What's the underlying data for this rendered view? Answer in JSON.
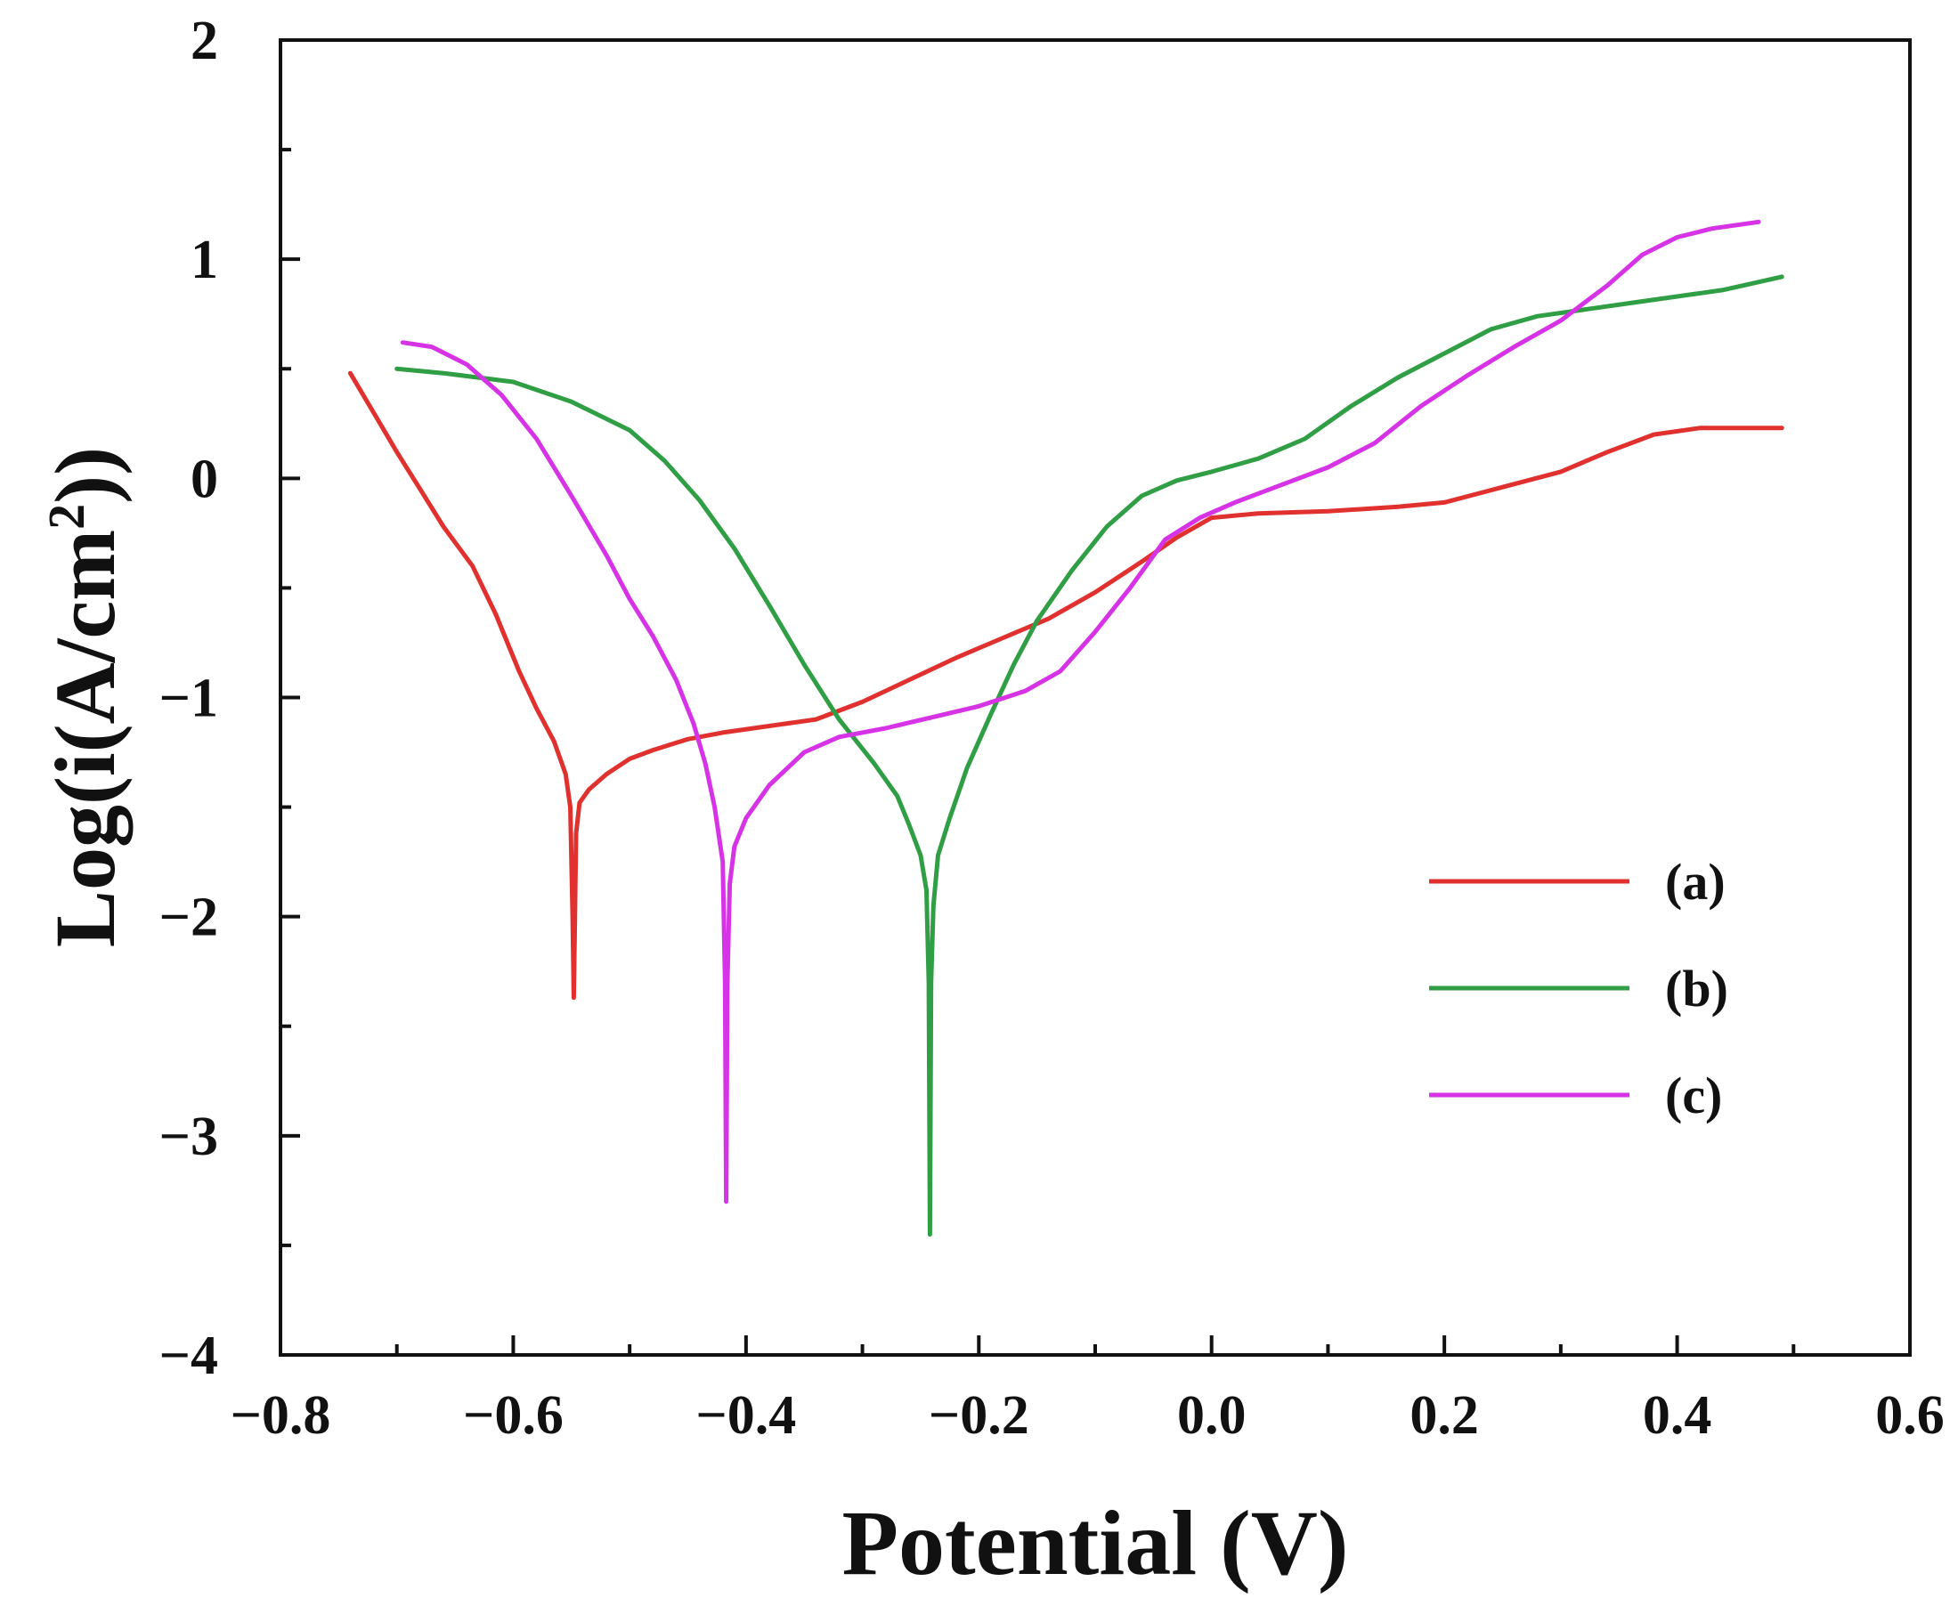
{
  "chart_data": {
    "type": "line",
    "title": "",
    "xlabel": "Potential (V)",
    "ylabel": {
      "prefix": "Log(i(A/cm",
      "sup": "2",
      "suffix": "))"
    },
    "xlim": [
      -0.8,
      0.6
    ],
    "ylim": [
      -4,
      2
    ],
    "xticks": [
      -0.8,
      -0.6,
      -0.4,
      -0.2,
      0.0,
      0.2,
      0.4,
      0.6
    ],
    "xtick_labels": [
      "−0.8",
      "−0.6",
      "−0.4",
      "−0.2",
      "0.0",
      "0.2",
      "0.4",
      "0.6"
    ],
    "yticks": [
      2,
      1,
      0,
      -1,
      -2,
      -3,
      -4
    ],
    "ytick_labels": [
      "2",
      "1",
      "0",
      "−1",
      "−2",
      "−3",
      "−4"
    ],
    "legend_position": "lower-right",
    "grid": false,
    "series": [
      {
        "name": "(a)",
        "color": "#e0312f",
        "points": [
          [
            -0.74,
            0.48
          ],
          [
            -0.72,
            0.3
          ],
          [
            -0.7,
            0.12
          ],
          [
            -0.68,
            -0.05
          ],
          [
            -0.66,
            -0.22
          ],
          [
            -0.635,
            -0.4
          ],
          [
            -0.615,
            -0.62
          ],
          [
            -0.595,
            -0.88
          ],
          [
            -0.58,
            -1.05
          ],
          [
            -0.565,
            -1.2
          ],
          [
            -0.555,
            -1.35
          ],
          [
            -0.551,
            -1.5
          ],
          [
            -0.549,
            -2.0
          ],
          [
            -0.548,
            -2.37
          ],
          [
            -0.547,
            -2.0
          ],
          [
            -0.546,
            -1.62
          ],
          [
            -0.543,
            -1.48
          ],
          [
            -0.535,
            -1.42
          ],
          [
            -0.52,
            -1.35
          ],
          [
            -0.5,
            -1.28
          ],
          [
            -0.48,
            -1.24
          ],
          [
            -0.45,
            -1.19
          ],
          [
            -0.42,
            -1.16
          ],
          [
            -0.38,
            -1.13
          ],
          [
            -0.34,
            -1.1
          ],
          [
            -0.3,
            -1.02
          ],
          [
            -0.26,
            -0.92
          ],
          [
            -0.22,
            -0.82
          ],
          [
            -0.18,
            -0.73
          ],
          [
            -0.14,
            -0.64
          ],
          [
            -0.1,
            -0.52
          ],
          [
            -0.06,
            -0.38
          ],
          [
            -0.03,
            -0.27
          ],
          [
            0.0,
            -0.18
          ],
          [
            0.04,
            -0.16
          ],
          [
            0.1,
            -0.15
          ],
          [
            0.16,
            -0.13
          ],
          [
            0.2,
            -0.11
          ],
          [
            0.25,
            -0.04
          ],
          [
            0.3,
            0.03
          ],
          [
            0.34,
            0.12
          ],
          [
            0.38,
            0.2
          ],
          [
            0.42,
            0.23
          ],
          [
            0.46,
            0.23
          ],
          [
            0.49,
            0.23
          ]
        ]
      },
      {
        "name": "(b)",
        "color": "#2f9e44",
        "points": [
          [
            -0.7,
            0.5
          ],
          [
            -0.66,
            0.48
          ],
          [
            -0.6,
            0.44
          ],
          [
            -0.55,
            0.35
          ],
          [
            -0.5,
            0.22
          ],
          [
            -0.47,
            0.08
          ],
          [
            -0.44,
            -0.1
          ],
          [
            -0.41,
            -0.32
          ],
          [
            -0.38,
            -0.58
          ],
          [
            -0.35,
            -0.85
          ],
          [
            -0.32,
            -1.1
          ],
          [
            -0.29,
            -1.3
          ],
          [
            -0.27,
            -1.45
          ],
          [
            -0.26,
            -1.58
          ],
          [
            -0.25,
            -1.72
          ],
          [
            -0.245,
            -1.88
          ],
          [
            -0.243,
            -2.3
          ],
          [
            -0.242,
            -3.45
          ],
          [
            -0.241,
            -2.3
          ],
          [
            -0.239,
            -1.95
          ],
          [
            -0.235,
            -1.72
          ],
          [
            -0.225,
            -1.55
          ],
          [
            -0.21,
            -1.32
          ],
          [
            -0.19,
            -1.08
          ],
          [
            -0.17,
            -0.85
          ],
          [
            -0.15,
            -0.65
          ],
          [
            -0.12,
            -0.42
          ],
          [
            -0.09,
            -0.22
          ],
          [
            -0.06,
            -0.08
          ],
          [
            -0.03,
            -0.01
          ],
          [
            0.0,
            0.03
          ],
          [
            0.04,
            0.09
          ],
          [
            0.08,
            0.18
          ],
          [
            0.12,
            0.33
          ],
          [
            0.16,
            0.46
          ],
          [
            0.2,
            0.57
          ],
          [
            0.24,
            0.68
          ],
          [
            0.28,
            0.74
          ],
          [
            0.32,
            0.77
          ],
          [
            0.36,
            0.8
          ],
          [
            0.4,
            0.83
          ],
          [
            0.44,
            0.86
          ],
          [
            0.49,
            0.92
          ]
        ]
      },
      {
        "name": "(c)",
        "color": "#d633e6",
        "points": [
          [
            -0.695,
            0.62
          ],
          [
            -0.67,
            0.6
          ],
          [
            -0.64,
            0.52
          ],
          [
            -0.61,
            0.38
          ],
          [
            -0.58,
            0.18
          ],
          [
            -0.55,
            -0.08
          ],
          [
            -0.52,
            -0.35
          ],
          [
            -0.5,
            -0.55
          ],
          [
            -0.48,
            -0.72
          ],
          [
            -0.46,
            -0.92
          ],
          [
            -0.445,
            -1.12
          ],
          [
            -0.435,
            -1.3
          ],
          [
            -0.427,
            -1.5
          ],
          [
            -0.42,
            -1.75
          ],
          [
            -0.418,
            -2.3
          ],
          [
            -0.417,
            -3.3
          ],
          [
            -0.416,
            -2.3
          ],
          [
            -0.414,
            -1.85
          ],
          [
            -0.41,
            -1.68
          ],
          [
            -0.4,
            -1.55
          ],
          [
            -0.38,
            -1.4
          ],
          [
            -0.35,
            -1.25
          ],
          [
            -0.32,
            -1.18
          ],
          [
            -0.28,
            -1.14
          ],
          [
            -0.24,
            -1.09
          ],
          [
            -0.2,
            -1.04
          ],
          [
            -0.16,
            -0.97
          ],
          [
            -0.13,
            -0.88
          ],
          [
            -0.1,
            -0.7
          ],
          [
            -0.07,
            -0.5
          ],
          [
            -0.04,
            -0.28
          ],
          [
            -0.01,
            -0.18
          ],
          [
            0.02,
            -0.11
          ],
          [
            0.06,
            -0.03
          ],
          [
            0.1,
            0.05
          ],
          [
            0.14,
            0.16
          ],
          [
            0.18,
            0.33
          ],
          [
            0.22,
            0.47
          ],
          [
            0.26,
            0.6
          ],
          [
            0.3,
            0.72
          ],
          [
            0.34,
            0.88
          ],
          [
            0.37,
            1.02
          ],
          [
            0.4,
            1.1
          ],
          [
            0.43,
            1.14
          ],
          [
            0.47,
            1.17
          ]
        ]
      }
    ]
  }
}
